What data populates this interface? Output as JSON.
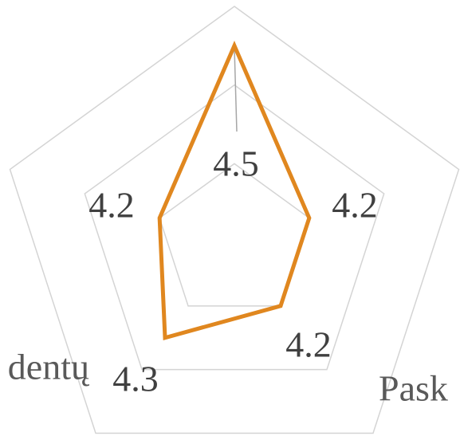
{
  "chart_data": {
    "type": "radar",
    "categories": [
      null,
      null,
      "Pask",
      "dentų",
      null
    ],
    "series": [
      {
        "color": "#e0871f",
        "values": [
          4.5,
          4.2,
          4.2,
          4.3,
          4.2
        ]
      }
    ],
    "rlim": [
      4.0,
      4.6
    ],
    "rticks": [
      4.2,
      4.4,
      4.6
    ],
    "grid": true
  }
}
